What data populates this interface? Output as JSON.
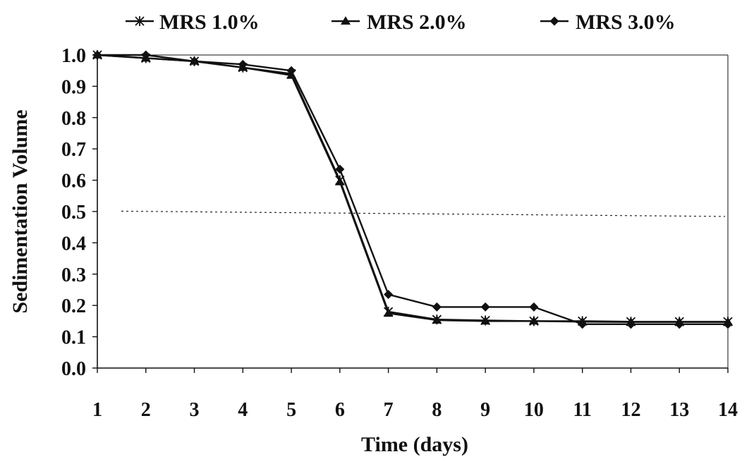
{
  "chart_data": {
    "type": "line",
    "title": "",
    "xlabel": "Time (days)",
    "ylabel": "Sedimentation Volume",
    "x": [
      1,
      2,
      3,
      4,
      5,
      6,
      7,
      8,
      9,
      10,
      11,
      12,
      13,
      14
    ],
    "x_tick_labels": [
      "1",
      "2",
      "3",
      "4",
      "5",
      "6",
      "7",
      "8",
      "9",
      "10",
      "11",
      "12",
      "13",
      "14"
    ],
    "xlim": [
      1,
      14
    ],
    "ylim": [
      0,
      1.0
    ],
    "y_tick_labels": [
      "0.0",
      "0.1",
      "0.2",
      "0.3",
      "0.4",
      "0.5",
      "0.6",
      "0.7",
      "0.8",
      "0.9",
      "1.0"
    ],
    "grid": false,
    "legend_position": "top",
    "reference_line": {
      "y": 0.5,
      "style": "dotted"
    },
    "series": [
      {
        "name": "MRS 1.0%",
        "marker": "asterisk",
        "values": [
          1.0,
          0.99,
          0.98,
          0.96,
          0.94,
          0.6,
          0.18,
          0.155,
          0.152,
          0.15,
          0.15,
          0.148,
          0.148,
          0.148
        ]
      },
      {
        "name": "MRS 2.0%",
        "marker": "triangle",
        "values": [
          1.0,
          0.99,
          0.98,
          0.96,
          0.935,
          0.595,
          0.175,
          0.153,
          0.15,
          0.15,
          0.148,
          0.147,
          0.147,
          0.147
        ]
      },
      {
        "name": "MRS 3.0%",
        "marker": "diamond",
        "values": [
          1.0,
          1.0,
          0.98,
          0.97,
          0.95,
          0.635,
          0.235,
          0.195,
          0.195,
          0.195,
          0.14,
          0.14,
          0.14,
          0.14
        ]
      }
    ]
  },
  "colors": {
    "ink": "#111111",
    "background": "#ffffff"
  }
}
